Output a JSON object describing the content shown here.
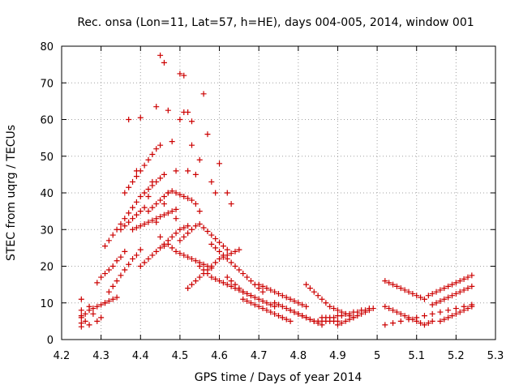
{
  "chart_data": {
    "type": "scatter",
    "title": "Rec. onsa (Lon=11, Lat=57, h=HE), days 004-005, 2014, window 001",
    "xlabel": "GPS time / Days of year 2014",
    "ylabel": "STEC from uqrg / TECUs",
    "xlim": [
      4.2,
      5.3
    ],
    "ylim": [
      0,
      80
    ],
    "xticks": [
      4.2,
      4.3,
      4.4,
      4.5,
      4.6,
      4.7,
      4.8,
      4.9,
      5.0,
      5.1,
      5.2,
      5.3
    ],
    "xtick_labels": [
      "4.2",
      "4.3",
      "4.4",
      "4.5",
      "4.6",
      "4.7",
      "4.8",
      "4.9",
      "5",
      "5.1",
      "5.2",
      "5.3"
    ],
    "yticks": [
      0,
      10,
      20,
      30,
      40,
      50,
      60,
      70,
      80
    ],
    "ytick_labels": [
      "0",
      "10",
      "20",
      "30",
      "40",
      "50",
      "60",
      "70",
      "80"
    ],
    "grid": true,
    "marker": "+",
    "color": "#cc0000",
    "series": [
      {
        "name": "STEC",
        "x": [
          4.25,
          4.25,
          4.25,
          4.25,
          4.25,
          4.26,
          4.27,
          4.27,
          4.28,
          4.29,
          4.3,
          4.31,
          4.25,
          4.26,
          4.27,
          4.28,
          4.29,
          4.3,
          4.31,
          4.32,
          4.33,
          4.34,
          4.29,
          4.3,
          4.31,
          4.32,
          4.33,
          4.34,
          4.35,
          4.36,
          4.32,
          4.33,
          4.34,
          4.35,
          4.36,
          4.37,
          4.38,
          4.39,
          4.4,
          4.31,
          4.32,
          4.33,
          4.35,
          4.36,
          4.37,
          4.38,
          4.39,
          4.4,
          4.41,
          4.34,
          4.35,
          4.36,
          4.37,
          4.38,
          4.39,
          4.4,
          4.41,
          4.42,
          4.43,
          4.44,
          4.45,
          4.46,
          4.36,
          4.37,
          4.38,
          4.39,
          4.4,
          4.41,
          4.42,
          4.43,
          4.44,
          4.45,
          4.38,
          4.39,
          4.4,
          4.41,
          4.42,
          4.43,
          4.44,
          4.45,
          4.46,
          4.47,
          4.48,
          4.49,
          4.4,
          4.41,
          4.42,
          4.43,
          4.44,
          4.45,
          4.46,
          4.47,
          4.48,
          4.49,
          4.5,
          4.51,
          4.52,
          4.42,
          4.43,
          4.44,
          4.45,
          4.46,
          4.47,
          4.48,
          4.49,
          4.5,
          4.51,
          4.52,
          4.53,
          4.54,
          4.44,
          4.45,
          4.46,
          4.47,
          4.48,
          4.49,
          4.5,
          4.51,
          4.52,
          4.53,
          4.54,
          4.55,
          4.46,
          4.47,
          4.48,
          4.49,
          4.5,
          4.51,
          4.52,
          4.53,
          4.54,
          4.55,
          4.56,
          4.57,
          4.58,
          4.5,
          4.51,
          4.52,
          4.53,
          4.54,
          4.55,
          4.56,
          4.57,
          4.58,
          4.59,
          4.6,
          4.61,
          4.62,
          4.52,
          4.53,
          4.54,
          4.55,
          4.56,
          4.57,
          4.58,
          4.59,
          4.6,
          4.61,
          4.62,
          4.63,
          4.64,
          4.65,
          4.55,
          4.56,
          4.57,
          4.58,
          4.59,
          4.6,
          4.61,
          4.62,
          4.63,
          4.64,
          4.65,
          4.66,
          4.67,
          4.68,
          4.58,
          4.59,
          4.6,
          4.61,
          4.62,
          4.63,
          4.64,
          4.65,
          4.66,
          4.67,
          4.68,
          4.69,
          4.7,
          4.71,
          4.62,
          4.63,
          4.64,
          4.65,
          4.66,
          4.67,
          4.68,
          4.69,
          4.7,
          4.71,
          4.72,
          4.73,
          4.74,
          4.66,
          4.67,
          4.68,
          4.69,
          4.7,
          4.71,
          4.72,
          4.73,
          4.74,
          4.75,
          4.76,
          4.77,
          4.78,
          4.7,
          4.71,
          4.72,
          4.73,
          4.74,
          4.75,
          4.76,
          4.77,
          4.78,
          4.79,
          4.8,
          4.81,
          4.82,
          4.74,
          4.75,
          4.76,
          4.77,
          4.78,
          4.79,
          4.8,
          4.81,
          4.82,
          4.83,
          4.84,
          4.85,
          4.86,
          4.78,
          4.79,
          4.8,
          4.81,
          4.82,
          4.83,
          4.84,
          4.85,
          4.86,
          4.87,
          4.88,
          4.89,
          4.9,
          4.82,
          4.83,
          4.84,
          4.85,
          4.86,
          4.87,
          4.88,
          4.89,
          4.9,
          4.91,
          4.92,
          4.93,
          4.94,
          4.86,
          4.87,
          4.88,
          4.89,
          4.9,
          4.91,
          4.92,
          4.93,
          4.94,
          4.95,
          4.96,
          4.97,
          4.98,
          4.9,
          4.91,
          4.92,
          4.93,
          4.94,
          4.95,
          4.96,
          4.97,
          4.98,
          4.99,
          5.02,
          5.03,
          5.04,
          5.05,
          5.06,
          5.07,
          5.08,
          5.09,
          5.1,
          5.11,
          5.12,
          5.02,
          5.03,
          5.04,
          5.05,
          5.06,
          5.07,
          5.08,
          5.09,
          5.1,
          5.11,
          5.12,
          5.13,
          5.14,
          5.02,
          5.04,
          5.06,
          5.08,
          5.1,
          5.12,
          5.14,
          5.16,
          5.18,
          5.2,
          5.22,
          5.24,
          5.13,
          5.14,
          5.15,
          5.16,
          5.17,
          5.18,
          5.19,
          5.2,
          5.21,
          5.22,
          5.23,
          5.24,
          5.14,
          5.15,
          5.16,
          5.17,
          5.18,
          5.19,
          5.2,
          5.21,
          5.22,
          5.23,
          5.24,
          5.16,
          5.17,
          5.18,
          5.19,
          5.2,
          5.21,
          5.22,
          5.23,
          5.24,
          4.37,
          4.39,
          4.4,
          4.42,
          4.43,
          4.44,
          4.45,
          4.46,
          4.47,
          4.49,
          4.5,
          4.51,
          4.52,
          4.53,
          4.55,
          4.56,
          4.57,
          4.58,
          4.59,
          4.6,
          4.62,
          4.63
        ],
        "y": [
          3.5,
          4.5,
          6,
          8,
          11,
          5,
          4,
          9,
          7,
          5,
          6,
          10,
          6.5,
          7,
          8,
          8.5,
          9,
          9.5,
          10,
          10.5,
          11,
          11.5,
          15.5,
          17,
          18,
          19,
          20,
          21.5,
          22.5,
          24,
          13,
          14.5,
          16,
          17.5,
          19,
          20.5,
          22,
          23,
          24.5,
          25.5,
          27,
          28.5,
          30,
          31,
          32,
          33,
          34,
          35,
          36,
          30,
          31.5,
          33,
          34.5,
          36,
          37.5,
          39,
          40,
          41,
          42,
          43,
          44,
          45,
          40,
          41.5,
          43,
          44.5,
          46,
          47.5,
          49,
          50.5,
          52,
          53,
          30,
          30.5,
          31,
          31.5,
          32,
          32.5,
          33,
          33.5,
          34,
          34.5,
          35,
          35.5,
          20,
          21,
          22,
          23,
          24,
          25,
          26,
          27,
          28,
          29,
          30,
          30.5,
          31,
          35,
          36,
          37,
          38,
          39,
          40,
          40.5,
          40,
          39.5,
          39,
          38.5,
          38,
          37,
          63.5,
          77.5,
          75.5,
          62.5,
          54,
          46,
          72.5,
          72,
          62,
          59.5,
          45,
          49,
          25.5,
          26,
          25,
          24,
          23.5,
          23,
          22.5,
          22,
          21.5,
          21,
          20.5,
          20,
          19.5,
          27,
          28,
          29,
          30,
          31,
          31.5,
          30.5,
          29.5,
          28.5,
          27.5,
          26.5,
          25.5,
          24.5,
          14,
          15,
          16,
          17,
          18,
          19,
          20,
          21,
          22,
          22.5,
          23,
          23.5,
          24,
          24.5,
          20,
          19,
          18,
          17,
          16.5,
          16,
          15.5,
          15,
          14.5,
          14,
          13.5,
          13,
          12.5,
          12,
          26,
          25,
          24,
          23,
          22,
          21,
          20,
          19,
          18,
          17,
          16,
          15,
          14,
          13,
          17,
          16,
          15,
          14,
          13,
          12.5,
          12,
          11.5,
          11,
          10.5,
          10,
          9.5,
          9,
          11,
          10.5,
          10,
          9.5,
          9,
          8.5,
          8,
          7.5,
          7,
          6.5,
          6,
          5.5,
          5,
          15,
          14.5,
          14,
          13.5,
          13,
          12.5,
          12,
          11.5,
          11,
          10.5,
          10,
          9.5,
          9,
          10,
          9.5,
          9,
          8.5,
          8,
          7.5,
          7,
          6.5,
          6,
          5.5,
          5,
          4.5,
          4,
          8,
          7.5,
          7,
          6.5,
          6,
          5.5,
          5,
          5,
          5,
          5,
          5,
          5,
          5,
          15,
          14,
          13,
          12,
          11,
          10,
          9,
          8.5,
          8,
          7.5,
          7,
          6.5,
          6,
          6,
          6,
          6,
          6,
          6.5,
          6.5,
          7,
          7,
          7.5,
          7.5,
          8,
          8,
          8.5,
          4,
          4.5,
          5,
          5.5,
          6,
          6.5,
          7,
          7.5,
          8,
          8.5,
          16,
          15.5,
          15,
          14.5,
          14,
          13.5,
          13,
          12.5,
          12,
          11.5,
          11,
          9,
          8.5,
          8,
          7.5,
          7,
          6.5,
          6,
          5.5,
          5,
          4.5,
          4,
          4.5,
          5,
          4,
          4.5,
          5,
          5.5,
          6,
          6.5,
          7,
          7.5,
          8,
          8.5,
          9,
          9.5,
          12,
          12.5,
          13,
          13.5,
          14,
          14.5,
          15,
          15.5,
          16,
          16.5,
          17,
          17.5,
          9.5,
          10,
          10.5,
          11,
          11.5,
          12,
          12.5,
          13,
          13.5,
          14,
          14.5,
          5,
          5.5,
          6,
          6.5,
          7,
          7.5,
          8,
          8.5,
          9,
          60,
          46,
          60.5,
          39,
          43,
          32,
          28,
          37,
          40,
          33,
          60,
          62,
          46,
          53,
          35,
          67,
          56,
          43,
          40,
          48,
          40,
          37
        ]
      }
    ]
  }
}
